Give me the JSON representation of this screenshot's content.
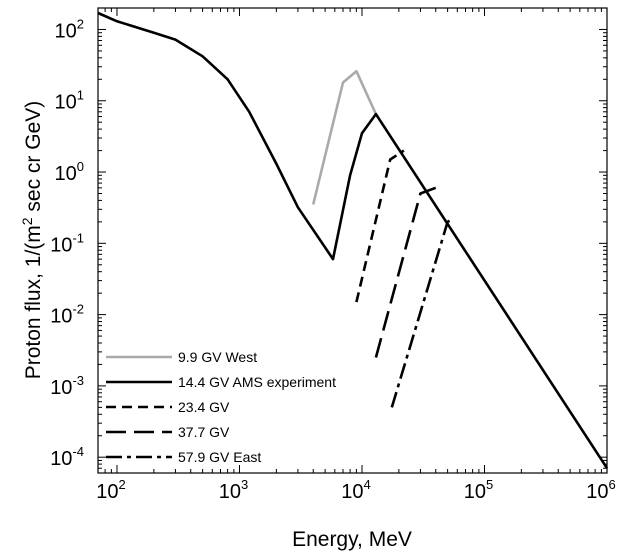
{
  "chart_data": {
    "type": "line",
    "title": "",
    "xlabel": "Energy, MeV",
    "ylabel_parts": [
      "Proton flux, 1/(m",
      "2",
      " sec cr GeV)"
    ],
    "x_scale": "log",
    "y_scale": "log",
    "xlim": [
      70,
      1000000
    ],
    "ylim": [
      6e-05,
      200
    ],
    "grid": false,
    "legend_placement": "bottom-left",
    "x_ticks": [
      {
        "value": 100,
        "base": "10",
        "exp": "2"
      },
      {
        "value": 1000,
        "base": "10",
        "exp": "3"
      },
      {
        "value": 10000,
        "base": "10",
        "exp": "4"
      },
      {
        "value": 100000,
        "base": "10",
        "exp": "5"
      },
      {
        "value": 1000000,
        "base": "10",
        "exp": "6"
      }
    ],
    "y_ticks": [
      {
        "value": 100,
        "base": "10",
        "exp": "2"
      },
      {
        "value": 10,
        "base": "10",
        "exp": "1"
      },
      {
        "value": 1,
        "base": "10",
        "exp": "0"
      },
      {
        "value": 0.1,
        "base": "10",
        "exp": "-1"
      },
      {
        "value": 0.01,
        "base": "10",
        "exp": "-2"
      },
      {
        "value": 0.001,
        "base": "10",
        "exp": "-3"
      },
      {
        "value": 0.0001,
        "base": "10",
        "exp": "-4"
      }
    ],
    "series": [
      {
        "name": "9.9 GV   West",
        "style": "solid",
        "color": "#aaaaaa",
        "points": [
          [
            4000,
            0.35
          ],
          [
            7000,
            18
          ],
          [
            9000,
            26
          ],
          [
            13000,
            6.5
          ]
        ]
      },
      {
        "name": "14.4 GV AMS experiment",
        "style": "solid",
        "color": "#000000",
        "points": [
          [
            70,
            170
          ],
          [
            100,
            130
          ],
          [
            200,
            90
          ],
          [
            300,
            72
          ],
          [
            500,
            42
          ],
          [
            800,
            20
          ],
          [
            1200,
            7
          ],
          [
            2000,
            1.3
          ],
          [
            3000,
            0.32
          ],
          [
            5800,
            0.06
          ],
          [
            8000,
            0.9
          ],
          [
            10000,
            3.5
          ],
          [
            13000,
            6.5
          ],
          [
            1000000,
            7e-05
          ]
        ]
      },
      {
        "name": "23.4 GV",
        "style": "dashed",
        "color": "#000000",
        "points": [
          [
            9000,
            0.015
          ],
          [
            17000,
            1.5
          ],
          [
            22000,
            2.0
          ]
        ]
      },
      {
        "name": "37.7 GV",
        "style": "longdash",
        "color": "#000000",
        "points": [
          [
            13000,
            0.0025
          ],
          [
            30000,
            0.5
          ],
          [
            40000,
            0.6
          ]
        ]
      },
      {
        "name": "57.9 GV   East",
        "style": "dashdot",
        "color": "#000000",
        "points": [
          [
            17500,
            0.0005
          ],
          [
            50000,
            0.2
          ],
          [
            55000,
            0.22
          ]
        ]
      }
    ]
  }
}
